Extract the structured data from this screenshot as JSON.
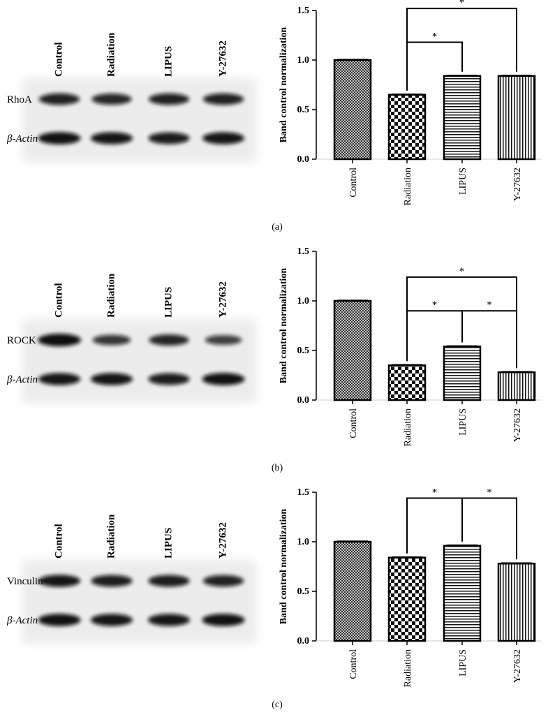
{
  "panels": [
    {
      "label": "(a)",
      "blot": {
        "lanes": [
          "Control",
          "Radiation",
          "LIPUS",
          "Y-27632"
        ],
        "protein": "RhoA",
        "loading": "β-Actin",
        "protein_band_strength": [
          0.8,
          0.75,
          0.8,
          0.8
        ],
        "loading_band_strength": [
          0.95,
          0.9,
          0.85,
          0.9
        ]
      },
      "brackets": [
        {
          "from": 1,
          "to": 2,
          "label": "*",
          "level": 1.18
        },
        {
          "from": 1,
          "to": 3,
          "label": "*",
          "level": 1.52
        }
      ]
    },
    {
      "label": "(b)",
      "blot": {
        "lanes": [
          "Control",
          "Radiation",
          "LIPUS",
          "Y-27632"
        ],
        "protein": "ROCK",
        "loading": "β-Actin",
        "protein_band_strength": [
          1.0,
          0.6,
          0.75,
          0.5
        ],
        "loading_band_strength": [
          0.9,
          0.9,
          0.85,
          0.95
        ]
      },
      "brackets": [
        {
          "from": 1,
          "to": 2,
          "label": "*",
          "level": 0.9
        },
        {
          "from": 2,
          "to": 3,
          "label": "*",
          "level": 0.9
        },
        {
          "from": 1,
          "to": 3,
          "label": "*",
          "level": 1.24
        }
      ]
    },
    {
      "label": "(c)",
      "blot": {
        "lanes": [
          "Control",
          "Radiation",
          "LIPUS",
          "Y-27632"
        ],
        "protein": "Vinculin",
        "loading": "β-Actin",
        "protein_band_strength": [
          0.9,
          0.85,
          0.85,
          0.8
        ],
        "loading_band_strength": [
          0.95,
          0.9,
          0.9,
          0.95
        ]
      },
      "brackets": [
        {
          "from": 1,
          "to": 2,
          "label": "*",
          "level": 1.44
        },
        {
          "from": 2,
          "to": 3,
          "label": "*",
          "level": 1.44
        }
      ]
    }
  ],
  "chart_data": [
    {
      "type": "bar",
      "categories": [
        "Control",
        "Radiation",
        "LIPUS",
        "Y-27632"
      ],
      "values": [
        1.0,
        0.65,
        0.84,
        0.84
      ],
      "ylabel": "Band control normalization",
      "ylim": [
        0,
        1.5
      ],
      "yticks": [
        "0.0",
        "0.5",
        "1.0",
        "1.5"
      ],
      "patterns": [
        "crosshatch",
        "checker",
        "horizontal",
        "vertical"
      ]
    },
    {
      "type": "bar",
      "categories": [
        "Control",
        "Radiation",
        "LIPUS",
        "Y-27632"
      ],
      "values": [
        1.0,
        0.35,
        0.54,
        0.28
      ],
      "ylabel": "Band control normalization",
      "ylim": [
        0,
        1.5
      ],
      "yticks": [
        "0.0",
        "0.5",
        "1.0",
        "1.5"
      ],
      "patterns": [
        "crosshatch",
        "checker",
        "horizontal",
        "vertical"
      ]
    },
    {
      "type": "bar",
      "categories": [
        "Control",
        "Radiation",
        "LIPUS",
        "Y-27632"
      ],
      "values": [
        1.0,
        0.84,
        0.96,
        0.78
      ],
      "ylabel": "Band control normalization",
      "ylim": [
        0,
        1.5
      ],
      "yticks": [
        "0.0",
        "0.5",
        "1.0",
        "1.5"
      ],
      "patterns": [
        "crosshatch",
        "checker",
        "horizontal",
        "vertical"
      ]
    }
  ]
}
